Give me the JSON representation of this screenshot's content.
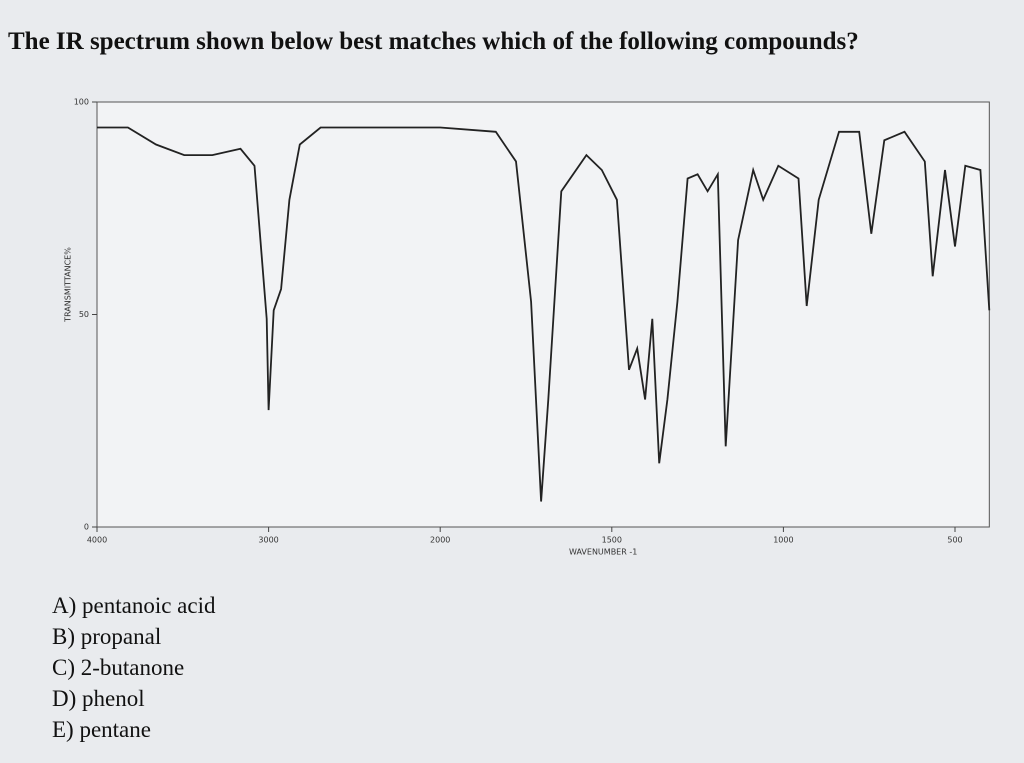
{
  "question": "The IR spectrum shown below best matches which of the following compounds?",
  "options": [
    "A) pentanoic acid",
    "B) propanal",
    "C) 2-butanone",
    "D) phenol",
    "E) pentane"
  ],
  "chart_data": {
    "type": "line",
    "x_label": "WAVENUMBER -1",
    "y_label": "TRANSMITTANCE%",
    "xlim": [
      4000,
      400
    ],
    "xticks": [
      4000,
      3000,
      2000,
      1500,
      1000,
      500
    ],
    "ylim": [
      0,
      100
    ],
    "yticks": [
      0,
      50,
      100
    ],
    "color": "#222222",
    "x": [
      4000,
      3820,
      3656,
      3492,
      3328,
      3164,
      3082,
      3011,
      3000,
      2970,
      2927,
      2879,
      2818,
      2697,
      2273,
      2000,
      1838,
      1779,
      1735,
      1706,
      1685,
      1647,
      1574,
      1529,
      1485,
      1450,
      1426,
      1403,
      1382,
      1362,
      1338,
      1309,
      1279,
      1250,
      1221,
      1191,
      1168,
      1132,
      1088,
      1059,
      1015,
      956,
      932,
      897,
      838,
      779,
      744,
      706,
      647,
      588,
      565,
      529,
      500,
      470,
      426,
      400
    ],
    "values": [
      94,
      94,
      90,
      87.5,
      87.5,
      89,
      85,
      49,
      27.5,
      51,
      56,
      77,
      90,
      94,
      94,
      94,
      93,
      86,
      53,
      6,
      30,
      79,
      87.5,
      84,
      77,
      37,
      42,
      30,
      49,
      15,
      30,
      53,
      82,
      83,
      79,
      83,
      19,
      67.5,
      84,
      77,
      85,
      82,
      52,
      77,
      93,
      93,
      69,
      91,
      93,
      86,
      59,
      84,
      66,
      85,
      84,
      51
    ]
  }
}
